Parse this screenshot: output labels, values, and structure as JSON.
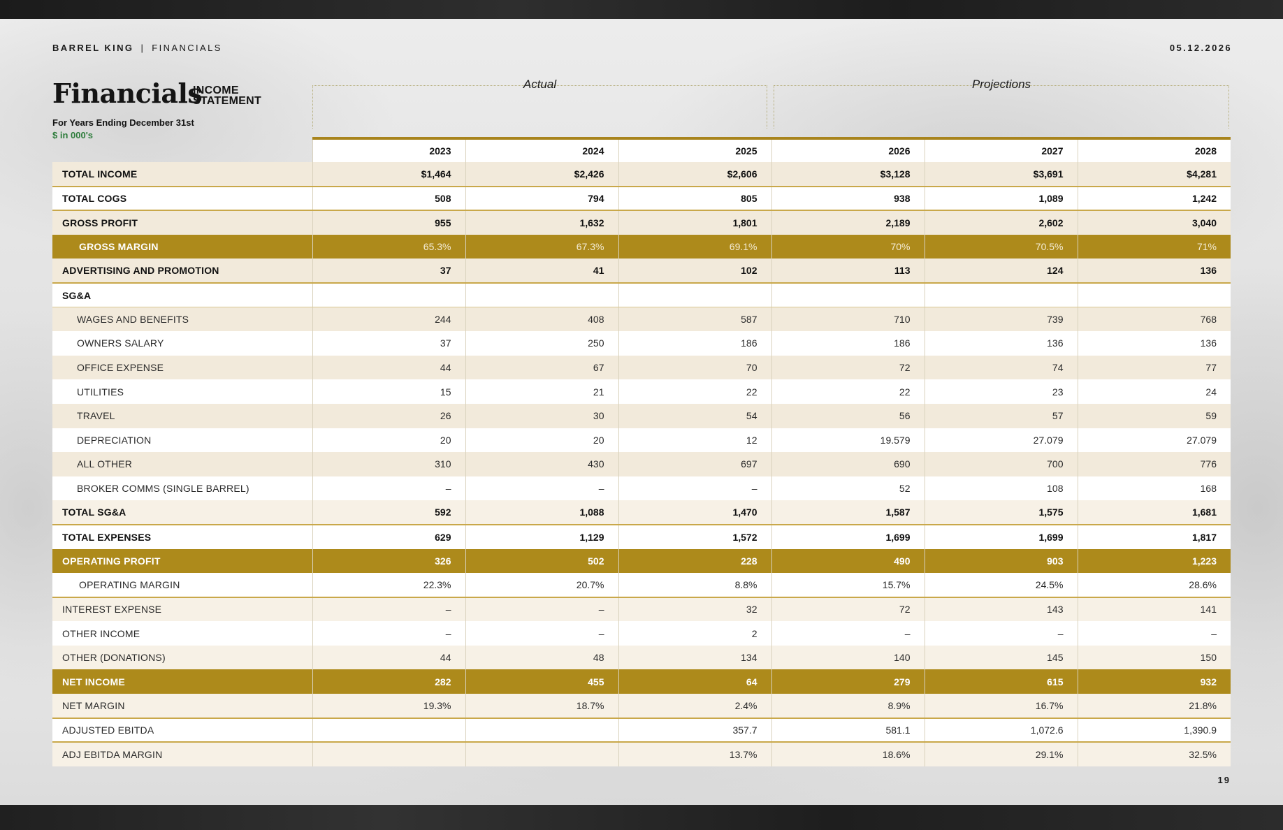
{
  "header": {
    "brand": "BARREL KING",
    "separator": "|",
    "section": "FINANCIALS",
    "date": "05.12.2026",
    "page_number": "19"
  },
  "title": {
    "main": "Financials",
    "sub_line1": "INCOME",
    "sub_line2": "STATEMENT",
    "period": "For Years Ending December 31st",
    "units": "$ in 000's"
  },
  "groups": {
    "actual": "Actual",
    "projections": "Projections"
  },
  "years": [
    "2023",
    "2024",
    "2025",
    "2026",
    "2027",
    "2028"
  ],
  "colors": {
    "gold": "#ad8a1b",
    "beige": "#f2eadb",
    "green": "#2e7d3c"
  },
  "rows": [
    {
      "label": "TOTAL INCOME",
      "values": [
        "$1,464",
        "$2,426",
        "$2,606",
        "$3,128",
        "$3,691",
        "$4,281"
      ]
    },
    {
      "label": "TOTAL COGS",
      "values": [
        "508",
        "794",
        "805",
        "938",
        "1,089",
        "1,242"
      ]
    },
    {
      "label": "GROSS PROFIT",
      "values": [
        "955",
        "1,632",
        "1,801",
        "2,189",
        "2,602",
        "3,040"
      ]
    },
    {
      "label": "GROSS MARGIN",
      "values": [
        "65.3%",
        "67.3%",
        "69.1%",
        "70%",
        "70.5%",
        "71%"
      ]
    },
    {
      "label": "ADVERTISING AND PROMOTION",
      "values": [
        "37",
        "41",
        "102",
        "113",
        "124",
        "136"
      ]
    },
    {
      "label": "SG&A",
      "values": [
        "",
        "",
        "",
        "",
        "",
        ""
      ]
    },
    {
      "label": "WAGES AND BENEFITS",
      "values": [
        "244",
        "408",
        "587",
        "710",
        "739",
        "768"
      ]
    },
    {
      "label": "OWNERS SALARY",
      "values": [
        "37",
        "250",
        "186",
        "186",
        "136",
        "136"
      ]
    },
    {
      "label": "OFFICE EXPENSE",
      "values": [
        "44",
        "67",
        "70",
        "72",
        "74",
        "77"
      ]
    },
    {
      "label": "UTILITIES",
      "values": [
        "15",
        "21",
        "22",
        "22",
        "23",
        "24"
      ]
    },
    {
      "label": "TRAVEL",
      "values": [
        "26",
        "30",
        "54",
        "56",
        "57",
        "59"
      ]
    },
    {
      "label": "DEPRECIATION",
      "values": [
        "20",
        "20",
        "12",
        "19.579",
        "27.079",
        "27.079"
      ]
    },
    {
      "label": "ALL OTHER",
      "values": [
        "310",
        "430",
        "697",
        "690",
        "700",
        "776"
      ]
    },
    {
      "label": "BROKER COMMS (SINGLE BARREL)",
      "values": [
        "–",
        "–",
        "–",
        "52",
        "108",
        "168"
      ]
    },
    {
      "label": "TOTAL SG&A",
      "values": [
        "592",
        "1,088",
        "1,470",
        "1,587",
        "1,575",
        "1,681"
      ]
    },
    {
      "label": "TOTAL EXPENSES",
      "values": [
        "629",
        "1,129",
        "1,572",
        "1,699",
        "1,699",
        "1,817"
      ]
    },
    {
      "label": "OPERATING PROFIT",
      "values": [
        "326",
        "502",
        "228",
        "490",
        "903",
        "1,223"
      ]
    },
    {
      "label": "OPERATING MARGIN",
      "values": [
        "22.3%",
        "20.7%",
        "8.8%",
        "15.7%",
        "24.5%",
        "28.6%"
      ]
    },
    {
      "label": "INTEREST EXPENSE",
      "values": [
        "–",
        "–",
        "32",
        "72",
        "143",
        "141"
      ]
    },
    {
      "label": "OTHER INCOME",
      "values": [
        "–",
        "–",
        "2",
        "–",
        "–",
        "–"
      ]
    },
    {
      "label": "OTHER (DONATIONS)",
      "values": [
        "44",
        "48",
        "134",
        "140",
        "145",
        "150"
      ]
    },
    {
      "label": "NET INCOME",
      "values": [
        "282",
        "455",
        "64",
        "279",
        "615",
        "932"
      ]
    },
    {
      "label": "NET MARGIN",
      "values": [
        "19.3%",
        "18.7%",
        "2.4%",
        "8.9%",
        "16.7%",
        "21.8%"
      ]
    },
    {
      "label": "ADJUSTED EBITDA",
      "values": [
        "",
        "",
        "357.7",
        "581.1",
        "1,072.6",
        "1,390.9"
      ]
    },
    {
      "label": "ADJ EBITDA MARGIN",
      "values": [
        "",
        "",
        "13.7%",
        "18.6%",
        "29.1%",
        "32.5%"
      ]
    }
  ]
}
